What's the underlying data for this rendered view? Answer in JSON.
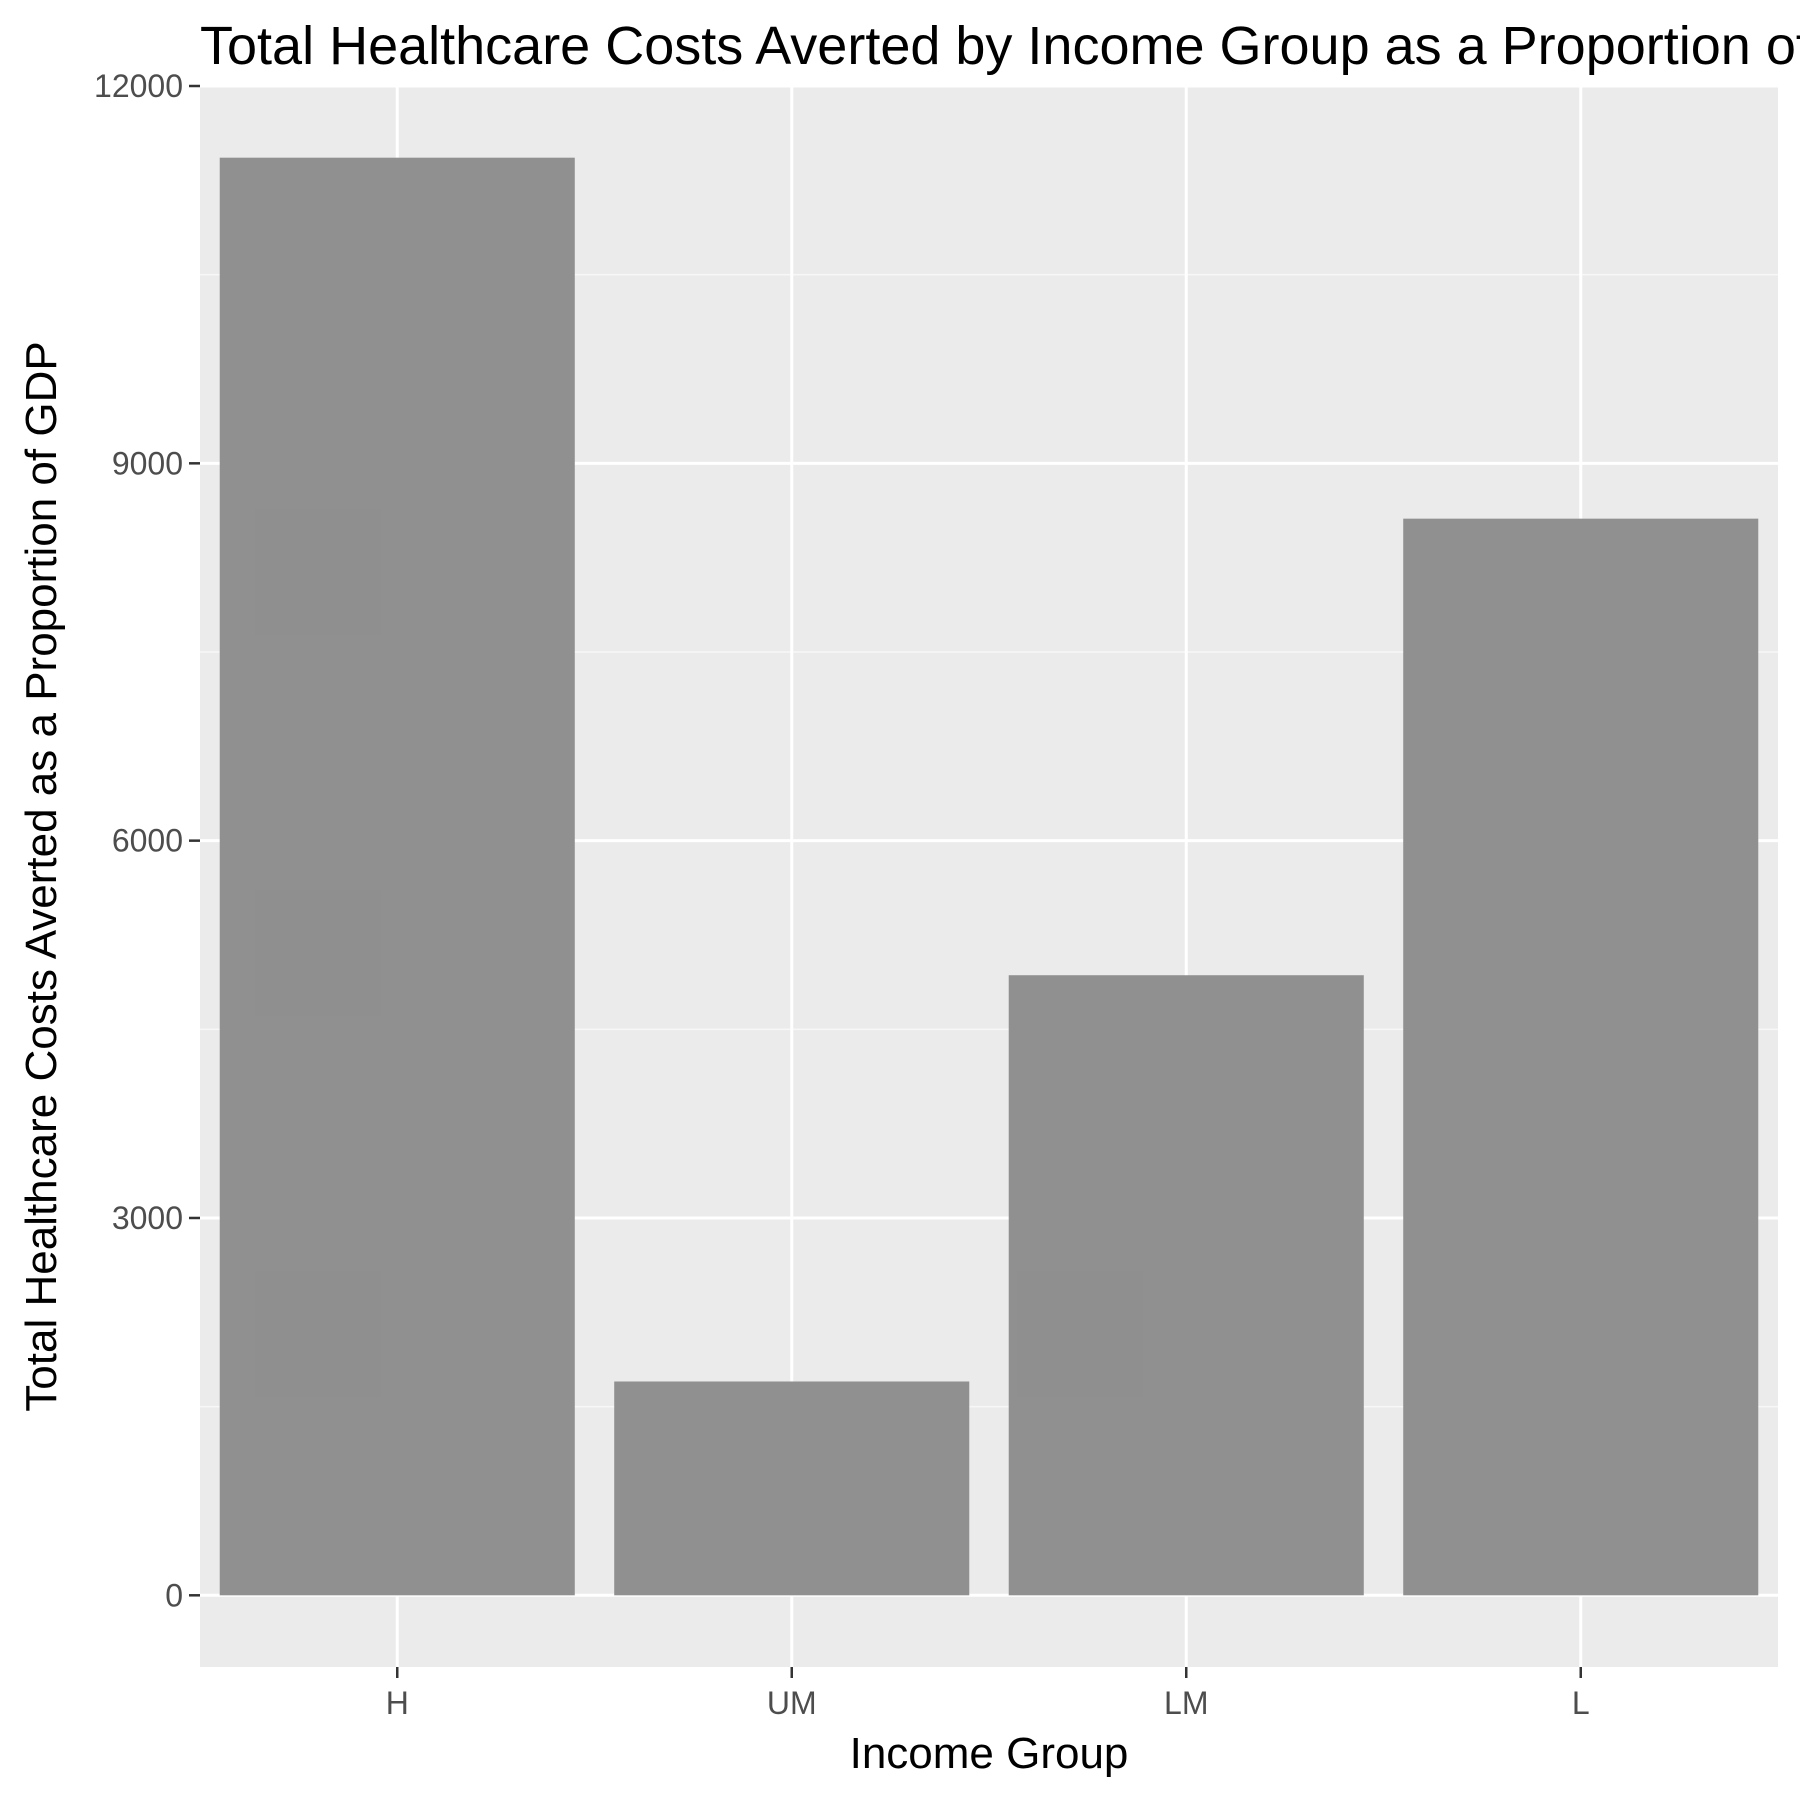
{
  "chart_data": {
    "type": "bar",
    "title": "Total Healthcare Costs Averted by Income Group as a Proportion of GDP",
    "xlabel": "Income Group",
    "ylabel": "Total Healthcare Costs Averted as a Proportion of GDP",
    "categories": [
      "H",
      "UM",
      "LM",
      "L"
    ],
    "values": [
      11430,
      1700,
      4930,
      8560
    ],
    "ylim": [
      -570,
      12000
    ],
    "y_ticks": [
      0,
      3000,
      6000,
      9000,
      12000
    ],
    "y_tick_labels": [
      "0",
      "3000",
      "6000",
      "9000",
      "12000"
    ],
    "grid": true,
    "legend": "none",
    "colors": {
      "bar": "#8c8c8c",
      "panel_background": "#ebebeb",
      "grid_major": "#ffffff",
      "grid_minor": "#f7f7f7",
      "tick": "#333333"
    }
  }
}
